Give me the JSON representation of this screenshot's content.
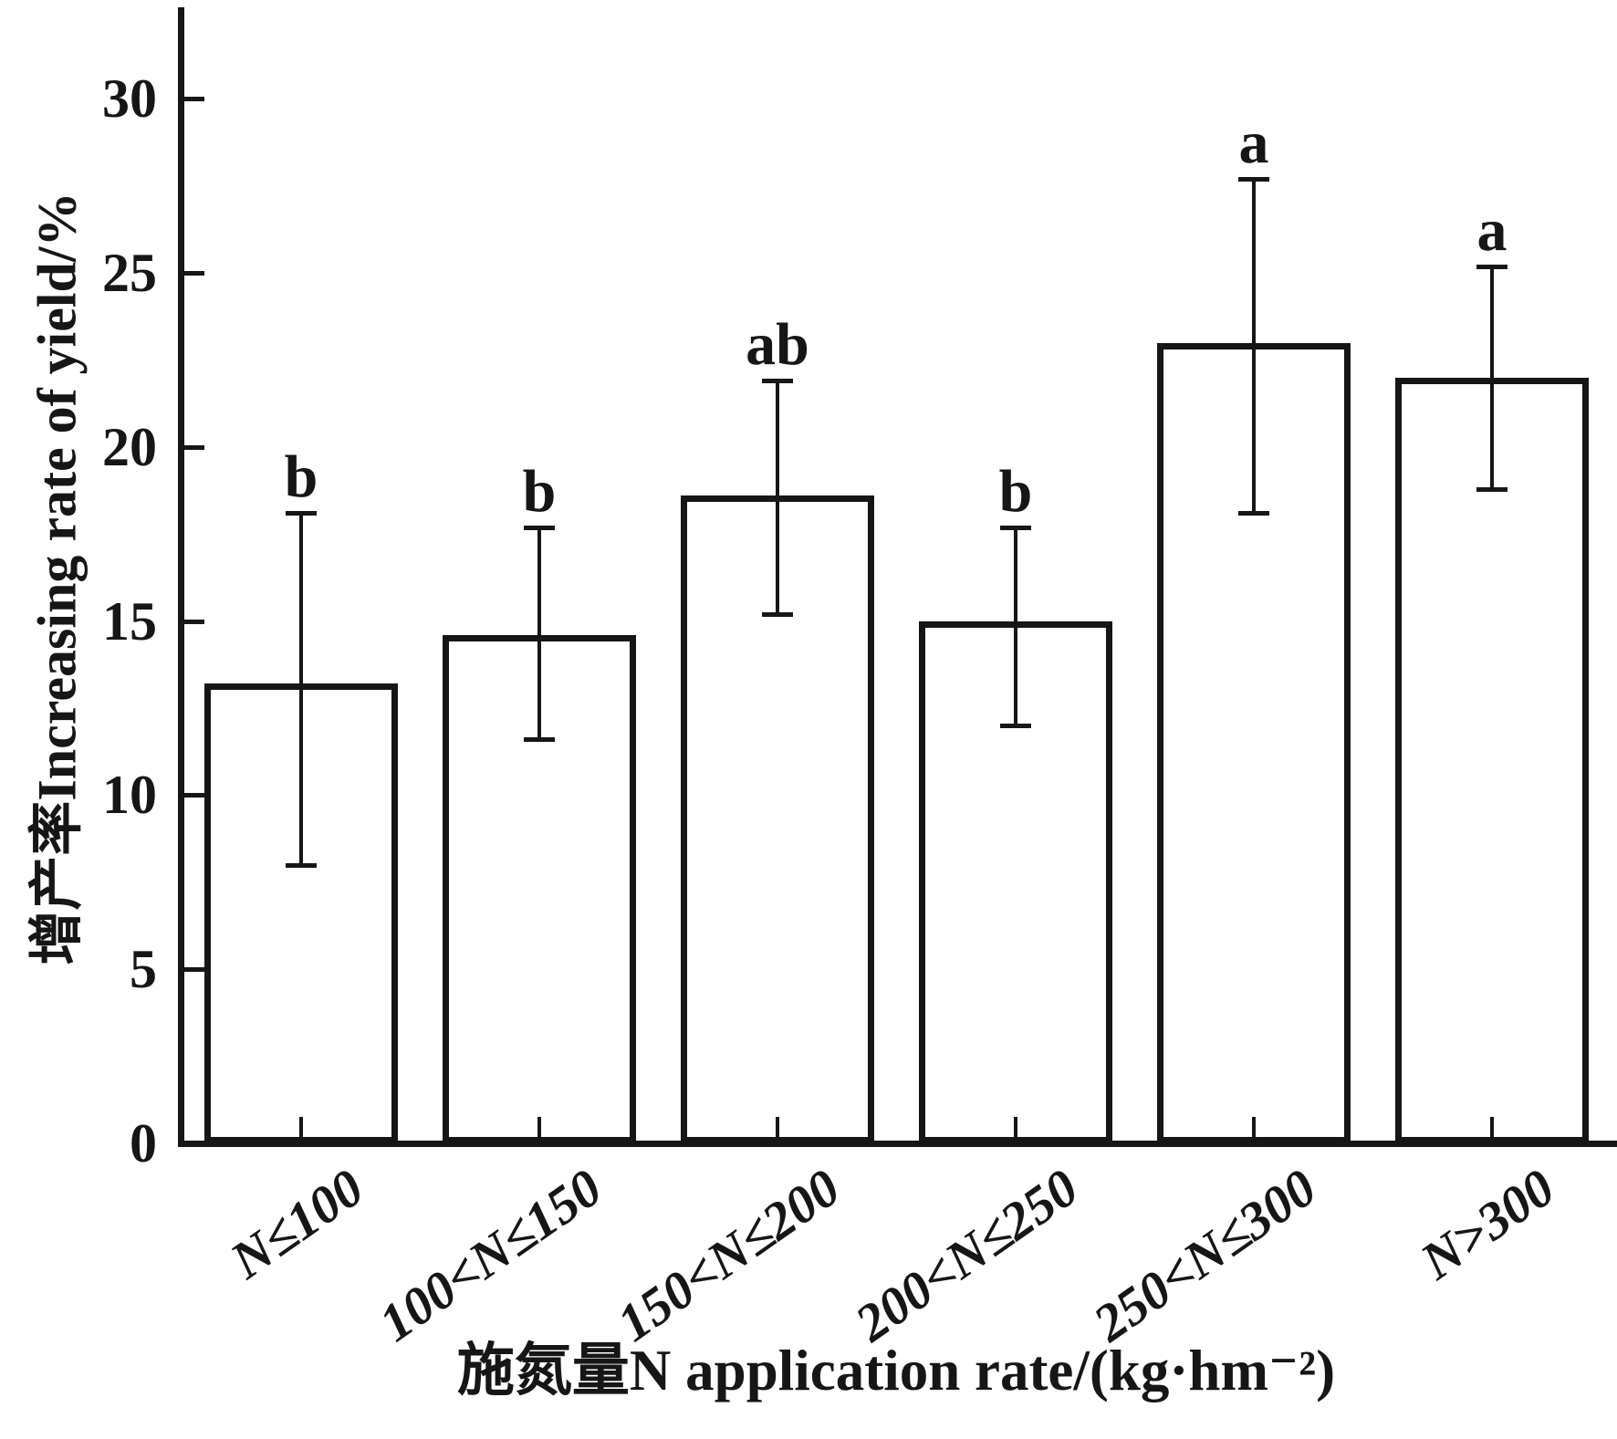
{
  "chart_data": {
    "type": "bar",
    "title": "",
    "xlabel": "施氮量N application rate/(kg·hm⁻²)",
    "ylabel": "增产率Increasing rate of yield/%",
    "categories": [
      "N≤100",
      "100<N≤150",
      "150<N≤200",
      "200<N≤250",
      "250<N≤300",
      "N>300"
    ],
    "values": [
      13.2,
      14.6,
      18.6,
      15.0,
      23.0,
      22.0
    ],
    "error_top_values": [
      18.1,
      17.7,
      21.9,
      17.7,
      27.7,
      25.2
    ],
    "error_bottom_values": [
      8.0,
      11.6,
      15.2,
      12.0,
      18.1,
      18.8
    ],
    "sig_letters": [
      "b",
      "b",
      "ab",
      "b",
      "a",
      "a"
    ],
    "yticks": [
      0,
      5,
      10,
      15,
      20,
      25,
      30
    ],
    "ylim": [
      0,
      32.45
    ],
    "grid": false,
    "legend": null,
    "bar_fill": "#ffffff",
    "line_color": "#161616"
  }
}
